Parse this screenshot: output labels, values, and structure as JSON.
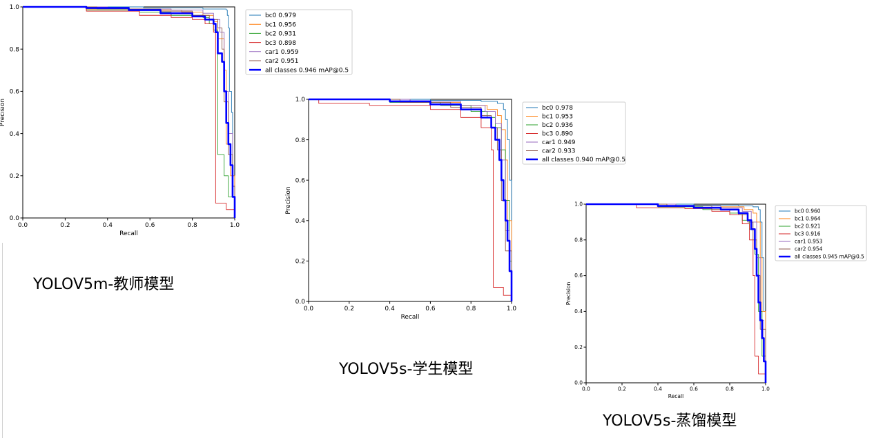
{
  "colors": {
    "bc0": "#1f77b4",
    "bc1": "#ff7f0e",
    "bc2": "#2ca02c",
    "bc3": "#d62728",
    "car1": "#9467bd",
    "car2": "#8c564b",
    "all": "#0000ff"
  },
  "chart_data": [
    {
      "type": "line",
      "xlabel": "Recall",
      "ylabel": "Precision",
      "xlim": [
        0,
        1
      ],
      "ylim": [
        0,
        1
      ],
      "xticks": [
        "0.0",
        "0.2",
        "0.4",
        "0.6",
        "0.8",
        "1.0"
      ],
      "yticks": [
        "0.0",
        "0.2",
        "0.4",
        "0.6",
        "0.8",
        "1.0"
      ],
      "legend_position": "outside-right",
      "caption": "YOLOV5m-教师模型",
      "series": [
        {
          "name": "bc0 0.979",
          "key": "bc0",
          "points": [
            [
              0,
              1
            ],
            [
              0.55,
              1
            ],
            [
              0.57,
              0.995
            ],
            [
              0.85,
              0.99
            ],
            [
              0.96,
              0.985
            ],
            [
              0.965,
              0.96
            ],
            [
              0.97,
              0.9
            ],
            [
              0.975,
              0.6
            ],
            [
              0.985,
              0.5
            ],
            [
              0.99,
              0.2
            ],
            [
              1.0,
              0.0
            ]
          ]
        },
        {
          "name": "bc1 0.956",
          "key": "bc1",
          "points": [
            [
              0,
              1
            ],
            [
              0.3,
              0.99
            ],
            [
              0.6,
              0.985
            ],
            [
              0.75,
              0.975
            ],
            [
              0.85,
              0.96
            ],
            [
              0.9,
              0.93
            ],
            [
              0.92,
              0.85
            ],
            [
              0.95,
              0.7
            ],
            [
              0.96,
              0.35
            ],
            [
              0.98,
              0.2
            ],
            [
              1.0,
              0.0
            ]
          ]
        },
        {
          "name": "bc2 0.931",
          "key": "bc2",
          "points": [
            [
              0,
              1
            ],
            [
              0.3,
              0.985
            ],
            [
              0.55,
              0.975
            ],
            [
              0.7,
              0.96
            ],
            [
              0.85,
              0.95
            ],
            [
              0.88,
              0.92
            ],
            [
              0.9,
              0.89
            ],
            [
              0.92,
              0.3
            ],
            [
              0.95,
              0.2
            ],
            [
              0.97,
              0.1
            ],
            [
              1.0,
              0.0
            ]
          ]
        },
        {
          "name": "bc3 0.898",
          "key": "bc3",
          "points": [
            [
              0,
              1
            ],
            [
              0.3,
              0.98
            ],
            [
              0.55,
              0.96
            ],
            [
              0.7,
              0.95
            ],
            [
              0.8,
              0.94
            ],
            [
              0.86,
              0.92
            ],
            [
              0.9,
              0.88
            ],
            [
              0.91,
              0.07
            ],
            [
              0.96,
              0.04
            ],
            [
              1.0,
              0.0
            ]
          ]
        },
        {
          "name": "car1 0.959",
          "key": "car1",
          "points": [
            [
              0,
              1
            ],
            [
              0.4,
              0.99
            ],
            [
              0.7,
              0.985
            ],
            [
              0.85,
              0.97
            ],
            [
              0.9,
              0.94
            ],
            [
              0.93,
              0.88
            ],
            [
              0.95,
              0.6
            ],
            [
              0.97,
              0.4
            ],
            [
              0.99,
              0.15
            ],
            [
              1.0,
              0.0
            ]
          ]
        },
        {
          "name": "car2 0.951",
          "key": "car2",
          "points": [
            [
              0,
              1
            ],
            [
              0.35,
              0.99
            ],
            [
              0.65,
              0.98
            ],
            [
              0.8,
              0.96
            ],
            [
              0.88,
              0.94
            ],
            [
              0.92,
              0.9
            ],
            [
              0.94,
              0.8
            ],
            [
              0.95,
              0.55
            ],
            [
              0.97,
              0.3
            ],
            [
              0.99,
              0.15
            ],
            [
              1.0,
              0.0
            ]
          ]
        },
        {
          "name": "all classes 0.946 mAP@0.5",
          "key": "all",
          "bold": true,
          "points": [
            [
              0,
              1
            ],
            [
              0.3,
              0.995
            ],
            [
              0.5,
              0.985
            ],
            [
              0.65,
              0.97
            ],
            [
              0.8,
              0.955
            ],
            [
              0.86,
              0.94
            ],
            [
              0.9,
              0.92
            ],
            [
              0.91,
              0.88
            ],
            [
              0.92,
              0.78
            ],
            [
              0.94,
              0.74
            ],
            [
              0.95,
              0.6
            ],
            [
              0.96,
              0.45
            ],
            [
              0.97,
              0.35
            ],
            [
              0.98,
              0.25
            ],
            [
              0.99,
              0.1
            ],
            [
              1.0,
              0.0
            ]
          ]
        }
      ]
    },
    {
      "type": "line",
      "xlabel": "Recall",
      "ylabel": "Precision",
      "xlim": [
        0,
        1
      ],
      "ylim": [
        0,
        1
      ],
      "xticks": [
        "0.0",
        "0.2",
        "0.4",
        "0.6",
        "0.8",
        "1.0"
      ],
      "yticks": [
        "0.0",
        "0.2",
        "0.4",
        "0.6",
        "0.8",
        "1.0"
      ],
      "legend_position": "outside-right",
      "caption": "YOLOV5s-学生模型",
      "series": [
        {
          "name": "bc0 0.978",
          "key": "bc0",
          "points": [
            [
              0,
              1
            ],
            [
              0.6,
              0.995
            ],
            [
              0.85,
              0.99
            ],
            [
              0.93,
              0.98
            ],
            [
              0.96,
              0.95
            ],
            [
              0.97,
              0.9
            ],
            [
              0.98,
              0.8
            ],
            [
              0.99,
              0.6
            ],
            [
              1.0,
              0.0
            ]
          ]
        },
        {
          "name": "bc1 0.953",
          "key": "bc1",
          "points": [
            [
              0,
              1
            ],
            [
              0.5,
              0.985
            ],
            [
              0.75,
              0.97
            ],
            [
              0.88,
              0.95
            ],
            [
              0.93,
              0.92
            ],
            [
              0.95,
              0.85
            ],
            [
              0.97,
              0.7
            ],
            [
              0.98,
              0.4
            ],
            [
              1.0,
              0.0
            ]
          ]
        },
        {
          "name": "bc2 0.936",
          "key": "bc2",
          "points": [
            [
              0,
              1
            ],
            [
              0.4,
              0.985
            ],
            [
              0.65,
              0.97
            ],
            [
              0.8,
              0.94
            ],
            [
              0.88,
              0.91
            ],
            [
              0.92,
              0.86
            ],
            [
              0.95,
              0.75
            ],
            [
              0.97,
              0.5
            ],
            [
              0.99,
              0.2
            ],
            [
              1.0,
              0.0
            ]
          ]
        },
        {
          "name": "bc3 0.890",
          "key": "bc3",
          "points": [
            [
              0,
              1
            ],
            [
              0.05,
              0.98
            ],
            [
              0.3,
              0.97
            ],
            [
              0.6,
              0.95
            ],
            [
              0.75,
              0.91
            ],
            [
              0.85,
              0.86
            ],
            [
              0.9,
              0.75
            ],
            [
              0.91,
              0.07
            ],
            [
              0.96,
              0.03
            ],
            [
              1.0,
              0.0
            ]
          ]
        },
        {
          "name": "car1 0.949",
          "key": "car1",
          "points": [
            [
              0,
              1
            ],
            [
              0.5,
              0.99
            ],
            [
              0.75,
              0.97
            ],
            [
              0.87,
              0.94
            ],
            [
              0.92,
              0.88
            ],
            [
              0.95,
              0.7
            ],
            [
              0.97,
              0.35
            ],
            [
              0.99,
              0.15
            ],
            [
              1.0,
              0.0
            ]
          ]
        },
        {
          "name": "car2 0.933",
          "key": "car2",
          "points": [
            [
              0,
              1
            ],
            [
              0.45,
              0.985
            ],
            [
              0.7,
              0.96
            ],
            [
              0.85,
              0.92
            ],
            [
              0.9,
              0.86
            ],
            [
              0.93,
              0.75
            ],
            [
              0.95,
              0.5
            ],
            [
              0.97,
              0.25
            ],
            [
              1.0,
              0.0
            ]
          ]
        },
        {
          "name": "all classes 0.940 mAP@0.5",
          "key": "all",
          "bold": true,
          "points": [
            [
              0,
              1
            ],
            [
              0.4,
              0.99
            ],
            [
              0.6,
              0.975
            ],
            [
              0.75,
              0.95
            ],
            [
              0.85,
              0.91
            ],
            [
              0.9,
              0.86
            ],
            [
              0.92,
              0.8
            ],
            [
              0.94,
              0.7
            ],
            [
              0.95,
              0.6
            ],
            [
              0.96,
              0.5
            ],
            [
              0.97,
              0.4
            ],
            [
              0.98,
              0.3
            ],
            [
              0.99,
              0.15
            ],
            [
              1.0,
              0.0
            ]
          ]
        }
      ]
    },
    {
      "type": "line",
      "xlabel": "Recall",
      "ylabel": "Precision",
      "xlim": [
        0,
        1
      ],
      "ylim": [
        0,
        1
      ],
      "xticks": [
        "0.0",
        "0.2",
        "0.4",
        "0.6",
        "0.8",
        "1.0"
      ],
      "yticks": [
        "0.0",
        "0.2",
        "0.4",
        "0.6",
        "0.8",
        "1.0"
      ],
      "legend_position": "outside-right",
      "caption": "YOLOV5s-蒸馏模型",
      "series": [
        {
          "name": "bc0 0.960",
          "key": "bc0",
          "points": [
            [
              0,
              1
            ],
            [
              0.6,
              0.995
            ],
            [
              0.85,
              0.99
            ],
            [
              0.93,
              0.985
            ],
            [
              0.96,
              0.97
            ],
            [
              0.97,
              0.9
            ],
            [
              0.98,
              0.7
            ],
            [
              0.99,
              0.4
            ],
            [
              1.0,
              0.0
            ]
          ]
        },
        {
          "name": "bc1 0.964",
          "key": "bc1",
          "points": [
            [
              0,
              1
            ],
            [
              0.5,
              0.99
            ],
            [
              0.75,
              0.985
            ],
            [
              0.88,
              0.97
            ],
            [
              0.93,
              0.95
            ],
            [
              0.95,
              0.9
            ],
            [
              0.97,
              0.7
            ],
            [
              0.98,
              0.4
            ],
            [
              1.0,
              0.0
            ]
          ]
        },
        {
          "name": "bc2 0.921",
          "key": "bc2",
          "points": [
            [
              0,
              1
            ],
            [
              0.4,
              0.985
            ],
            [
              0.65,
              0.97
            ],
            [
              0.8,
              0.95
            ],
            [
              0.87,
              0.91
            ],
            [
              0.91,
              0.86
            ],
            [
              0.94,
              0.72
            ],
            [
              0.96,
              0.4
            ],
            [
              0.98,
              0.15
            ],
            [
              1.0,
              0.0
            ]
          ]
        },
        {
          "name": "bc3 0.916",
          "key": "bc3",
          "points": [
            [
              0,
              1
            ],
            [
              0.28,
              0.98
            ],
            [
              0.55,
              0.975
            ],
            [
              0.7,
              0.96
            ],
            [
              0.8,
              0.94
            ],
            [
              0.87,
              0.89
            ],
            [
              0.91,
              0.8
            ],
            [
              0.93,
              0.6
            ],
            [
              0.94,
              0.15
            ],
            [
              0.96,
              0.05
            ],
            [
              1.0,
              0.0
            ]
          ]
        },
        {
          "name": "car1 0.953",
          "key": "car1",
          "points": [
            [
              0,
              1
            ],
            [
              0.5,
              0.99
            ],
            [
              0.75,
              0.98
            ],
            [
              0.87,
              0.96
            ],
            [
              0.92,
              0.9
            ],
            [
              0.95,
              0.7
            ],
            [
              0.97,
              0.35
            ],
            [
              0.99,
              0.15
            ],
            [
              1.0,
              0.0
            ]
          ]
        },
        {
          "name": "car2 0.954",
          "key": "car2",
          "points": [
            [
              0,
              1
            ],
            [
              0.45,
              0.99
            ],
            [
              0.7,
              0.97
            ],
            [
              0.85,
              0.94
            ],
            [
              0.9,
              0.9
            ],
            [
              0.93,
              0.8
            ],
            [
              0.95,
              0.6
            ],
            [
              0.97,
              0.3
            ],
            [
              1.0,
              0.0
            ]
          ]
        },
        {
          "name": "all classes 0.945 mAP@0.5",
          "key": "all",
          "bold": true,
          "points": [
            [
              0,
              1
            ],
            [
              0.4,
              0.99
            ],
            [
              0.6,
              0.98
            ],
            [
              0.75,
              0.97
            ],
            [
              0.85,
              0.95
            ],
            [
              0.9,
              0.91
            ],
            [
              0.92,
              0.86
            ],
            [
              0.94,
              0.75
            ],
            [
              0.95,
              0.6
            ],
            [
              0.96,
              0.45
            ],
            [
              0.97,
              0.35
            ],
            [
              0.98,
              0.25
            ],
            [
              0.99,
              0.12
            ],
            [
              1.0,
              0.0
            ]
          ]
        }
      ]
    }
  ]
}
